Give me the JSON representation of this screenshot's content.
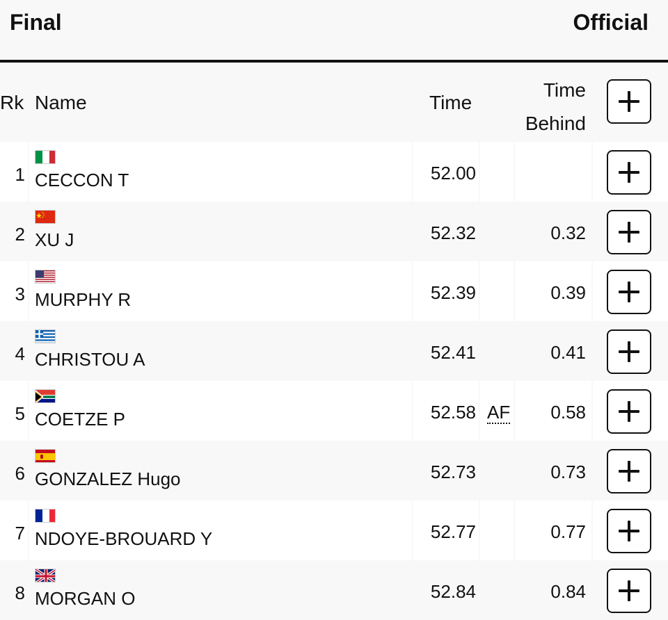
{
  "header": {
    "title": "Final",
    "status": "Official"
  },
  "columns": {
    "rank": "Rk",
    "name": "Name",
    "time": "Time",
    "time_behind_line1": "Time",
    "time_behind_line2": "Behind"
  },
  "rows": [
    {
      "rank": "1",
      "name": "CECCON T",
      "flag": "italy-flag-icon",
      "time": "52.00",
      "mark": "",
      "behind": ""
    },
    {
      "rank": "2",
      "name": "XU J",
      "flag": "china-flag-icon",
      "time": "52.32",
      "mark": "",
      "behind": "0.32"
    },
    {
      "rank": "3",
      "name": "MURPHY R",
      "flag": "usa-flag-icon",
      "time": "52.39",
      "mark": "",
      "behind": "0.39"
    },
    {
      "rank": "4",
      "name": "CHRISTOU A",
      "flag": "greece-flag-icon",
      "time": "52.41",
      "mark": "",
      "behind": "0.41"
    },
    {
      "rank": "5",
      "name": "COETZE P",
      "flag": "south-africa-flag-icon",
      "time": "52.58",
      "mark": "AF",
      "behind": "0.58"
    },
    {
      "rank": "6",
      "name": "GONZALEZ Hugo",
      "flag": "spain-flag-icon",
      "time": "52.73",
      "mark": "",
      "behind": "0.73"
    },
    {
      "rank": "7",
      "name": "NDOYE-BROUARD Y",
      "flag": "france-flag-icon",
      "time": "52.77",
      "mark": "",
      "behind": "0.77"
    },
    {
      "rank": "8",
      "name": "MORGAN O",
      "flag": "uk-flag-icon",
      "time": "52.84",
      "mark": "",
      "behind": "0.84"
    }
  ]
}
